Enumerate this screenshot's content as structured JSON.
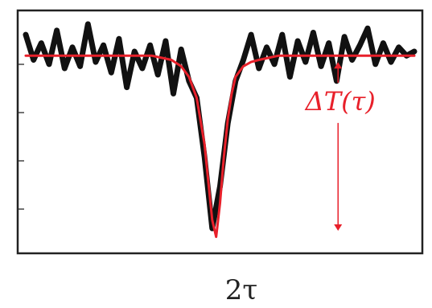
{
  "chart_data": {
    "type": "line",
    "xlabel": "2τ",
    "ylabel": "",
    "title": "",
    "xlim": [
      -1,
      1
    ],
    "ylim": [
      -0.9,
      0.15
    ],
    "grid": false,
    "legend": "none",
    "annotations": [
      {
        "text": "ΔT(τ)",
        "color": "#e8202a",
        "x": 0.62,
        "y": -0.22
      }
    ],
    "series": [
      {
        "color": "#111111",
        "x": [
          -1.0,
          -0.96,
          -0.92,
          -0.88,
          -0.84,
          -0.8,
          -0.76,
          -0.72,
          -0.68,
          -0.64,
          -0.6,
          -0.56,
          -0.52,
          -0.48,
          -0.44,
          -0.4,
          -0.36,
          -0.32,
          -0.28,
          -0.24,
          -0.2,
          -0.16,
          -0.12,
          -0.08,
          -0.04,
          0.0,
          0.04,
          0.08,
          0.12,
          0.16,
          0.2,
          0.24,
          0.28,
          0.32,
          0.36,
          0.4,
          0.44,
          0.48,
          0.52,
          0.56,
          0.6,
          0.64,
          0.68,
          0.72,
          0.76,
          0.8,
          0.84,
          0.88,
          0.92,
          0.96,
          1.0
        ],
        "y": [
          0.1,
          -0.02,
          0.06,
          -0.04,
          0.12,
          -0.06,
          0.04,
          -0.05,
          0.15,
          -0.03,
          0.05,
          -0.08,
          0.08,
          -0.15,
          0.02,
          -0.06,
          0.05,
          -0.09,
          0.07,
          -0.18,
          0.03,
          -0.12,
          -0.2,
          -0.48,
          -0.82,
          -0.62,
          -0.32,
          -0.12,
          -0.02,
          0.1,
          -0.06,
          0.04,
          -0.04,
          0.1,
          -0.1,
          0.07,
          -0.03,
          0.11,
          -0.05,
          0.06,
          -0.12,
          0.09,
          -0.02,
          0.05,
          0.13,
          -0.04,
          0.06,
          -0.03,
          0.04,
          0.0,
          0.02
        ]
      },
      {
        "color": "#e8202a",
        "x": [
          -1.0,
          -0.95,
          -0.9,
          -0.85,
          -0.8,
          -0.75,
          -0.7,
          -0.65,
          -0.6,
          -0.55,
          -0.5,
          -0.45,
          -0.4,
          -0.35,
          -0.3,
          -0.25,
          -0.2,
          -0.16,
          -0.12,
          -0.08,
          -0.06,
          -0.04,
          -0.02,
          0.0,
          0.02,
          0.04,
          0.06,
          0.08,
          0.12,
          0.16,
          0.2,
          0.25,
          0.3,
          0.35,
          0.4,
          0.45,
          0.5,
          0.55,
          0.6,
          0.65,
          0.7,
          0.75,
          0.8,
          0.85,
          0.9,
          0.95,
          1.0
        ],
        "y": [
          0.0,
          0.0,
          0.0,
          0.0,
          0.0,
          0.0,
          0.0,
          0.0,
          0.0,
          0.0,
          0.0,
          0.0,
          0.0,
          0.0,
          -0.01,
          -0.02,
          -0.05,
          -0.1,
          -0.2,
          -0.42,
          -0.6,
          -0.78,
          -0.86,
          -0.7,
          -0.48,
          -0.3,
          -0.18,
          -0.1,
          -0.05,
          -0.03,
          -0.02,
          -0.01,
          0.0,
          0.0,
          0.0,
          0.0,
          0.0,
          0.0,
          0.0,
          0.0,
          0.0,
          0.0,
          0.0,
          0.0,
          0.0,
          0.0,
          0.0
        ]
      }
    ]
  }
}
